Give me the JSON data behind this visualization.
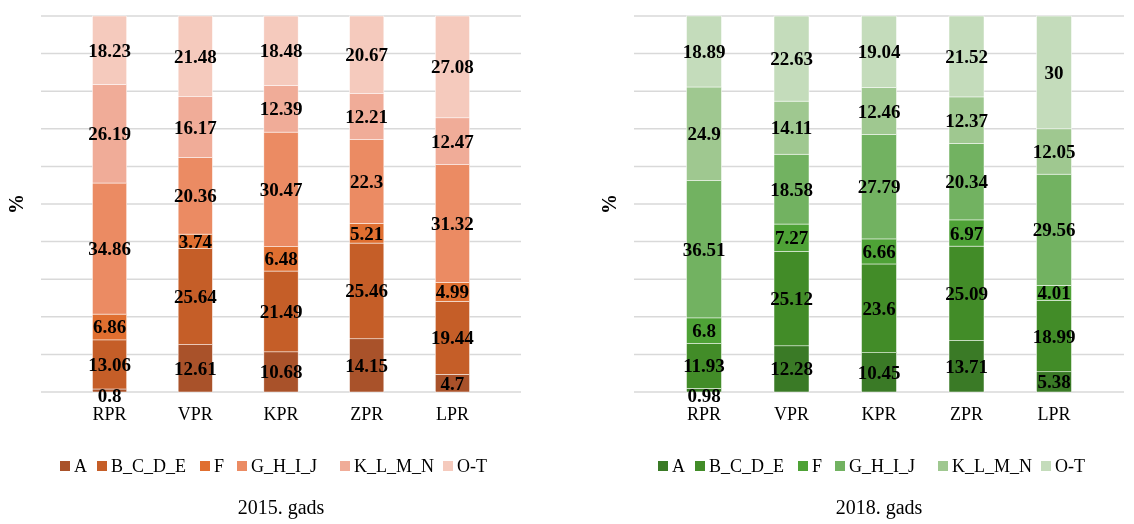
{
  "chart_data": [
    {
      "type": "bar",
      "stacked": true,
      "title": "2015. gads",
      "ylabel": "%",
      "categories": [
        "RPR",
        "VPR",
        "KPR",
        "ZPR",
        "LPR"
      ],
      "ylim": [
        0,
        100
      ],
      "yticks": [
        {
          "value": 0,
          "label": null
        },
        {
          "value": 10,
          "label": null
        },
        {
          "value": 20,
          "label": null
        },
        {
          "value": 30,
          "label": null
        },
        {
          "value": 40,
          "label": null
        },
        {
          "value": 50,
          "label": null
        },
        {
          "value": 60,
          "label": null
        },
        {
          "value": 70,
          "label": null
        },
        {
          "value": 80,
          "label": null
        },
        {
          "value": 90,
          "label": null
        },
        {
          "value": 100,
          "label": null
        }
      ],
      "tick_labels": "x",
      "grid": "y",
      "legend": "bottom",
      "data_labels": true,
      "series": [
        {
          "name": "A",
          "color": "#a9522a",
          "values": [
            0.8,
            12.61,
            10.68,
            14.15,
            4.7
          ]
        },
        {
          "name": "B_C_D_E",
          "color": "#c55e28",
          "values": [
            13.06,
            25.64,
            21.49,
            25.46,
            19.44
          ]
        },
        {
          "name": "F",
          "color": "#e06f30",
          "values": [
            6.86,
            3.74,
            6.48,
            5.21,
            4.99
          ]
        },
        {
          "name": "G_H_I_J",
          "color": "#eb8b63",
          "values": [
            34.86,
            20.36,
            30.47,
            22.3,
            31.32
          ]
        },
        {
          "name": "K_L_M_N",
          "color": "#f0ac98",
          "values": [
            26.19,
            16.17,
            12.39,
            12.21,
            12.47
          ]
        },
        {
          "name": "O-T",
          "color": "#f5cabd",
          "values": [
            18.23,
            21.48,
            18.48,
            20.67,
            27.08
          ]
        }
      ]
    },
    {
      "type": "bar",
      "stacked": true,
      "title": "2018. gads",
      "ylabel": "%",
      "categories": [
        "RPR",
        "VPR",
        "KPR",
        "ZPR",
        "LPR"
      ],
      "ylim": [
        0,
        100
      ],
      "yticks": [
        {
          "value": 0,
          "label": null
        },
        {
          "value": 10,
          "label": null
        },
        {
          "value": 20,
          "label": null
        },
        {
          "value": 30,
          "label": null
        },
        {
          "value": 40,
          "label": null
        },
        {
          "value": 50,
          "label": null
        },
        {
          "value": 60,
          "label": null
        },
        {
          "value": 70,
          "label": null
        },
        {
          "value": 80,
          "label": null
        },
        {
          "value": 90,
          "label": null
        },
        {
          "value": 100,
          "label": null
        }
      ],
      "tick_labels": "x",
      "grid": "y",
      "legend": "bottom",
      "data_labels": true,
      "series": [
        {
          "name": "A",
          "color": "#3a7a26",
          "values": [
            0.98,
            12.28,
            10.45,
            13.71,
            5.38
          ]
        },
        {
          "name": "B_C_D_E",
          "color": "#428c28",
          "values": [
            11.93,
            25.12,
            23.6,
            25.09,
            18.99
          ]
        },
        {
          "name": "F",
          "color": "#4ea236",
          "values": [
            6.8,
            7.27,
            6.66,
            6.97,
            4.01
          ]
        },
        {
          "name": "G_H_I_J",
          "color": "#72b261",
          "values": [
            36.51,
            18.58,
            27.79,
            20.34,
            29.56
          ]
        },
        {
          "name": "K_L_M_N",
          "color": "#9fc890",
          "values": [
            24.9,
            14.11,
            12.46,
            12.37,
            12.05
          ]
        },
        {
          "name": "O-T",
          "color": "#c4dcbb",
          "values": [
            18.89,
            22.63,
            19.04,
            21.52,
            30
          ]
        }
      ]
    }
  ]
}
